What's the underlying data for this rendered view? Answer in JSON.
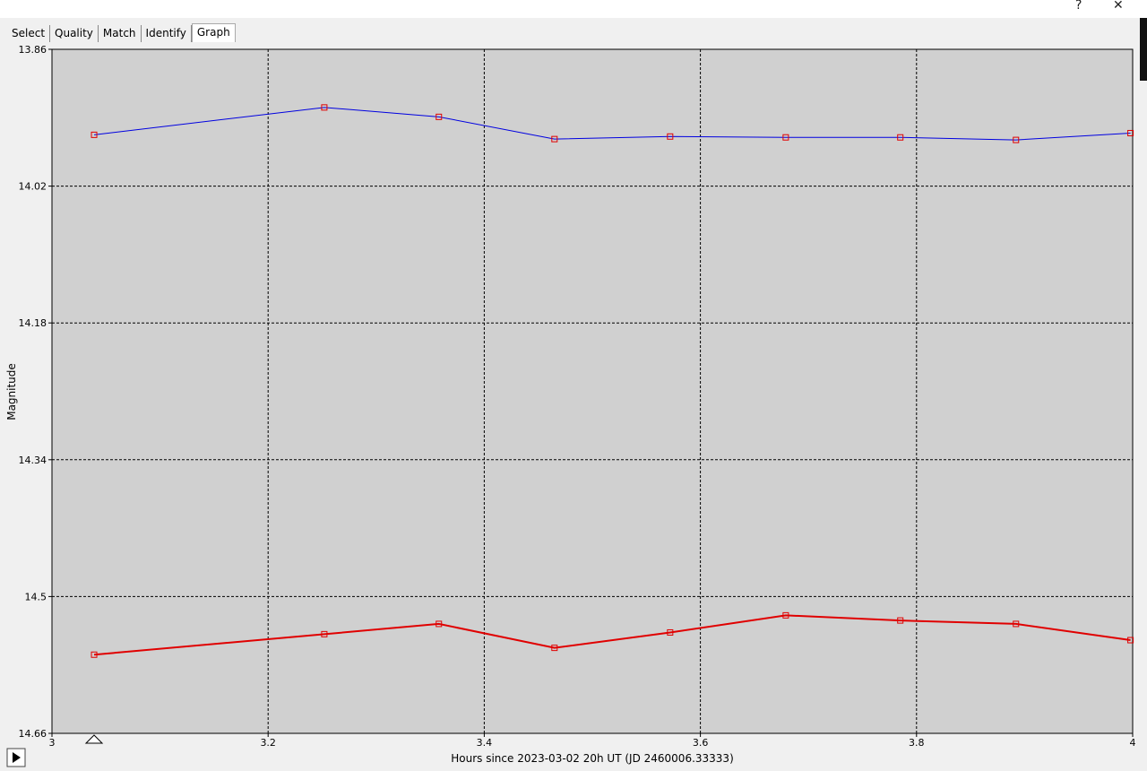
{
  "window": {
    "help": "?",
    "close": "✕"
  },
  "tabs": [
    "Select",
    "Quality",
    "Match",
    "Identify",
    "Graph"
  ],
  "active_tab": 4,
  "chart_data": {
    "type": "line",
    "y_label": "Magnitude",
    "x_label": "Hours since 2023-03-02 20h UT (JD 2460006.33333)",
    "x": [
      3.039,
      3.252,
      3.358,
      3.465,
      3.572,
      3.679,
      3.785,
      3.892,
      3.998
    ],
    "series": [
      {
        "color": "#0000e0",
        "line_width": 1,
        "values": [
          13.96,
          13.928,
          13.939,
          13.965,
          13.962,
          13.963,
          13.963,
          13.966,
          13.958
        ]
      },
      {
        "color": "#e00000",
        "line_width": 2,
        "values": [
          14.568,
          14.544,
          14.532,
          14.56,
          14.542,
          14.522,
          14.528,
          14.532,
          14.551
        ]
      }
    ],
    "marker_color": "#e00000",
    "xlim": [
      3,
      4
    ],
    "xticks": [
      3,
      3.2,
      3.4,
      3.6,
      3.8,
      4
    ],
    "ylim": [
      13.86,
      14.66
    ],
    "yticks": [
      13.86,
      14.02,
      14.18,
      14.34,
      14.5,
      14.66
    ],
    "y_inverted": true,
    "grid": true
  }
}
